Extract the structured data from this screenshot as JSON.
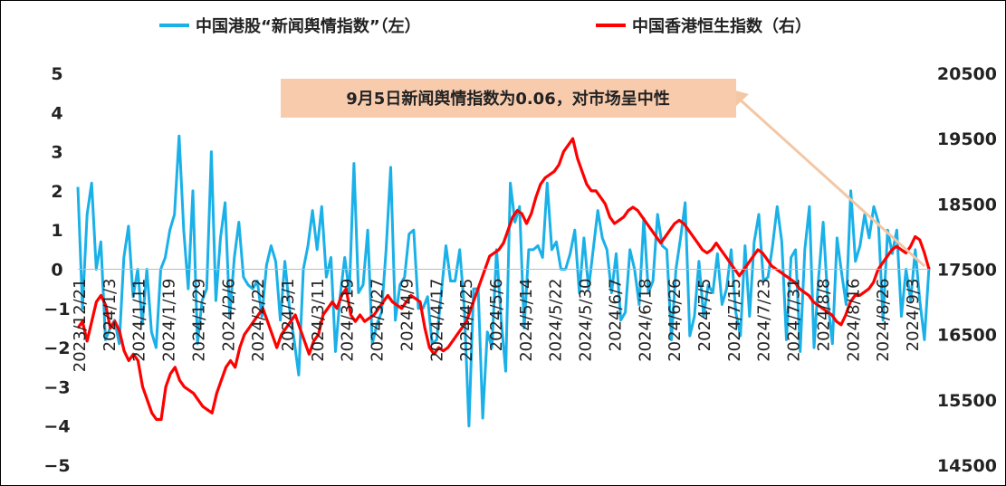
{
  "chart_data": {
    "type": "line",
    "legend": [
      {
        "label": "中国港股“新闻舆情指数”（左）",
        "color": "#1ab0e8"
      },
      {
        "label": "中国香港恒生指数（右）",
        "color": "#ff0000"
      }
    ],
    "legend_placement": "top",
    "annotation": "9月5日新闻舆情指数为0.06，对市场呈中性",
    "annotation_bg": "#f8cbad",
    "arrow_color": "#f4c7a4",
    "y_left": {
      "min": -5,
      "max": 5,
      "ticks": [
        "5",
        "4",
        "3",
        "2",
        "1",
        "0",
        "−1",
        "−2",
        "−3",
        "−4",
        "−5"
      ]
    },
    "y_right": {
      "min": 14500,
      "max": 20500,
      "ticks": [
        "20500",
        "19500",
        "18500",
        "17500",
        "16500",
        "15500",
        "14500"
      ]
    },
    "x_tick_labels": [
      "2023/12/21",
      "2024/1/3",
      "2024/1/11",
      "2024/1/19",
      "2024/1/29",
      "2024/2/6",
      "2024/2/22",
      "2024/3/1",
      "2024/3/11",
      "2024/3/19",
      "2024/3/27",
      "2024/4/9",
      "2024/4/17",
      "2024/4/25",
      "2024/5/6",
      "2024/5/14",
      "2024/5/22",
      "2024/5/30",
      "2024/6/7",
      "2024/6/18",
      "2024/6/26",
      "2024/7/5",
      "2024/7/15",
      "2024/7/23",
      "2024/7/31",
      "2024/8/8",
      "2024/8/16",
      "2024/8/26",
      "2024/9/3"
    ],
    "grid": false,
    "series": [
      {
        "name": "中国港股“新闻舆情指数”（左）",
        "axis": "left",
        "color": "#1ab0e8",
        "values": [
          2.1,
          -1.0,
          1.4,
          2.2,
          0.0,
          0.7,
          -1.8,
          -1.5,
          -1.3,
          -1.9,
          0.3,
          1.1,
          -0.7,
          0.0,
          -1.4,
          0.0,
          -1.6,
          -2.0,
          0.0,
          0.3,
          1.0,
          1.4,
          3.4,
          1.0,
          -0.5,
          2.0,
          -1.9,
          -0.8,
          -0.5,
          3.0,
          -0.8,
          0.8,
          1.7,
          -1.2,
          0.3,
          1.2,
          -0.2,
          -0.4,
          -0.5,
          -0.3,
          -1.2,
          0.1,
          0.6,
          0.2,
          -1.3,
          0.2,
          -1.0,
          -1.8,
          -2.7,
          0.0,
          0.6,
          1.5,
          0.5,
          1.6,
          -0.2,
          0.3,
          -2.1,
          -0.7,
          0.3,
          -0.6,
          2.7,
          -0.6,
          -0.4,
          1.0,
          -1.9,
          -1.4,
          -1.1,
          0.5,
          2.6,
          -1.3,
          -0.4,
          -0.2,
          0.9,
          1.0,
          -1.0,
          -1.0,
          -0.7,
          -1.9,
          -1.8,
          -0.6,
          0.6,
          -0.3,
          -0.3,
          0.5,
          -1.0,
          -4.0,
          -0.5,
          -0.5,
          -3.8,
          -1.6,
          -2.0,
          0.5,
          -1.3,
          -2.6,
          2.2,
          1.2,
          1.6,
          -1.5,
          0.5,
          0.5,
          0.6,
          0.3,
          2.2,
          0.5,
          0.7,
          0.0,
          0.0,
          0.4,
          1.0,
          -0.6,
          0.8,
          -0.5,
          0.5,
          1.5,
          0.8,
          0.5,
          -0.6,
          0.4,
          -1.3,
          -1.1,
          0.5,
          0.0,
          -0.9,
          1.3,
          -0.6,
          -0.3,
          1.4,
          0.6,
          0.5,
          -1.8,
          0.0,
          0.8,
          1.7,
          -1.7,
          -1.2,
          0.2,
          -1.2,
          -0.4,
          -0.6,
          0.4,
          -0.9,
          -0.5,
          0.5,
          -1.1,
          -1.7,
          0.6,
          -1.2,
          0.7,
          1.4,
          -0.3,
          -0.2,
          0.6,
          1.6,
          0.7,
          -1.8,
          0.3,
          0.5,
          -2.1,
          0.5,
          1.6,
          -2.0,
          -0.2,
          1.2,
          -0.8,
          -1.9,
          0.8,
          -0.1,
          -0.9,
          2.0,
          0.2,
          0.6,
          1.4,
          0.8,
          1.6,
          1.2,
          -1.3,
          1.0,
          0.4,
          1.0,
          -1.2,
          0.0,
          -0.8,
          0.5,
          -0.8,
          -1.8,
          0.06
        ]
      },
      {
        "name": "中国香港恒生指数（右）",
        "axis": "right",
        "color": "#ff0000",
        "values": [
          16600,
          16700,
          16400,
          16700,
          17000,
          17100,
          16950,
          16600,
          16700,
          16550,
          16250,
          16100,
          16200,
          16100,
          15700,
          15500,
          15300,
          15200,
          15200,
          15700,
          15900,
          16000,
          15800,
          15700,
          15650,
          15600,
          15500,
          15400,
          15350,
          15300,
          15600,
          15800,
          16000,
          16100,
          16000,
          16300,
          16500,
          16600,
          16700,
          16800,
          16900,
          16700,
          16500,
          16300,
          16500,
          16600,
          16700,
          16800,
          16600,
          16400,
          16200,
          16400,
          16500,
          16800,
          16900,
          17000,
          16900,
          17100,
          17200,
          16800,
          16700,
          16800,
          16700,
          16750,
          16800,
          16900,
          17000,
          17100,
          17000,
          16950,
          16900,
          17000,
          17100,
          17050,
          17000,
          16600,
          16300,
          16200,
          16300,
          16250,
          16300,
          16400,
          16500,
          16600,
          16700,
          16900,
          17100,
          17300,
          17500,
          17700,
          17750,
          17800,
          17900,
          18100,
          18300,
          18400,
          18350,
          18200,
          18350,
          18600,
          18800,
          18900,
          18950,
          19000,
          19100,
          19300,
          19400,
          19500,
          19200,
          19000,
          18800,
          18700,
          18700,
          18600,
          18500,
          18300,
          18200,
          18250,
          18300,
          18400,
          18450,
          18400,
          18300,
          18200,
          18100,
          18000,
          17900,
          18000,
          18100,
          18200,
          18250,
          18200,
          18100,
          18000,
          17900,
          17800,
          17750,
          17800,
          17900,
          17800,
          17700,
          17600,
          17500,
          17400,
          17500,
          17600,
          17700,
          17800,
          17750,
          17650,
          17550,
          17500,
          17450,
          17400,
          17350,
          17300,
          17200,
          17150,
          17100,
          17000,
          16950,
          16900,
          16850,
          16800,
          16700,
          16650,
          16800,
          17000,
          17100,
          17100,
          17150,
          17200,
          17300,
          17500,
          17600,
          17700,
          17800,
          17850,
          17800,
          17750,
          17850,
          18000,
          17950,
          17750,
          17500
        ]
      }
    ]
  }
}
